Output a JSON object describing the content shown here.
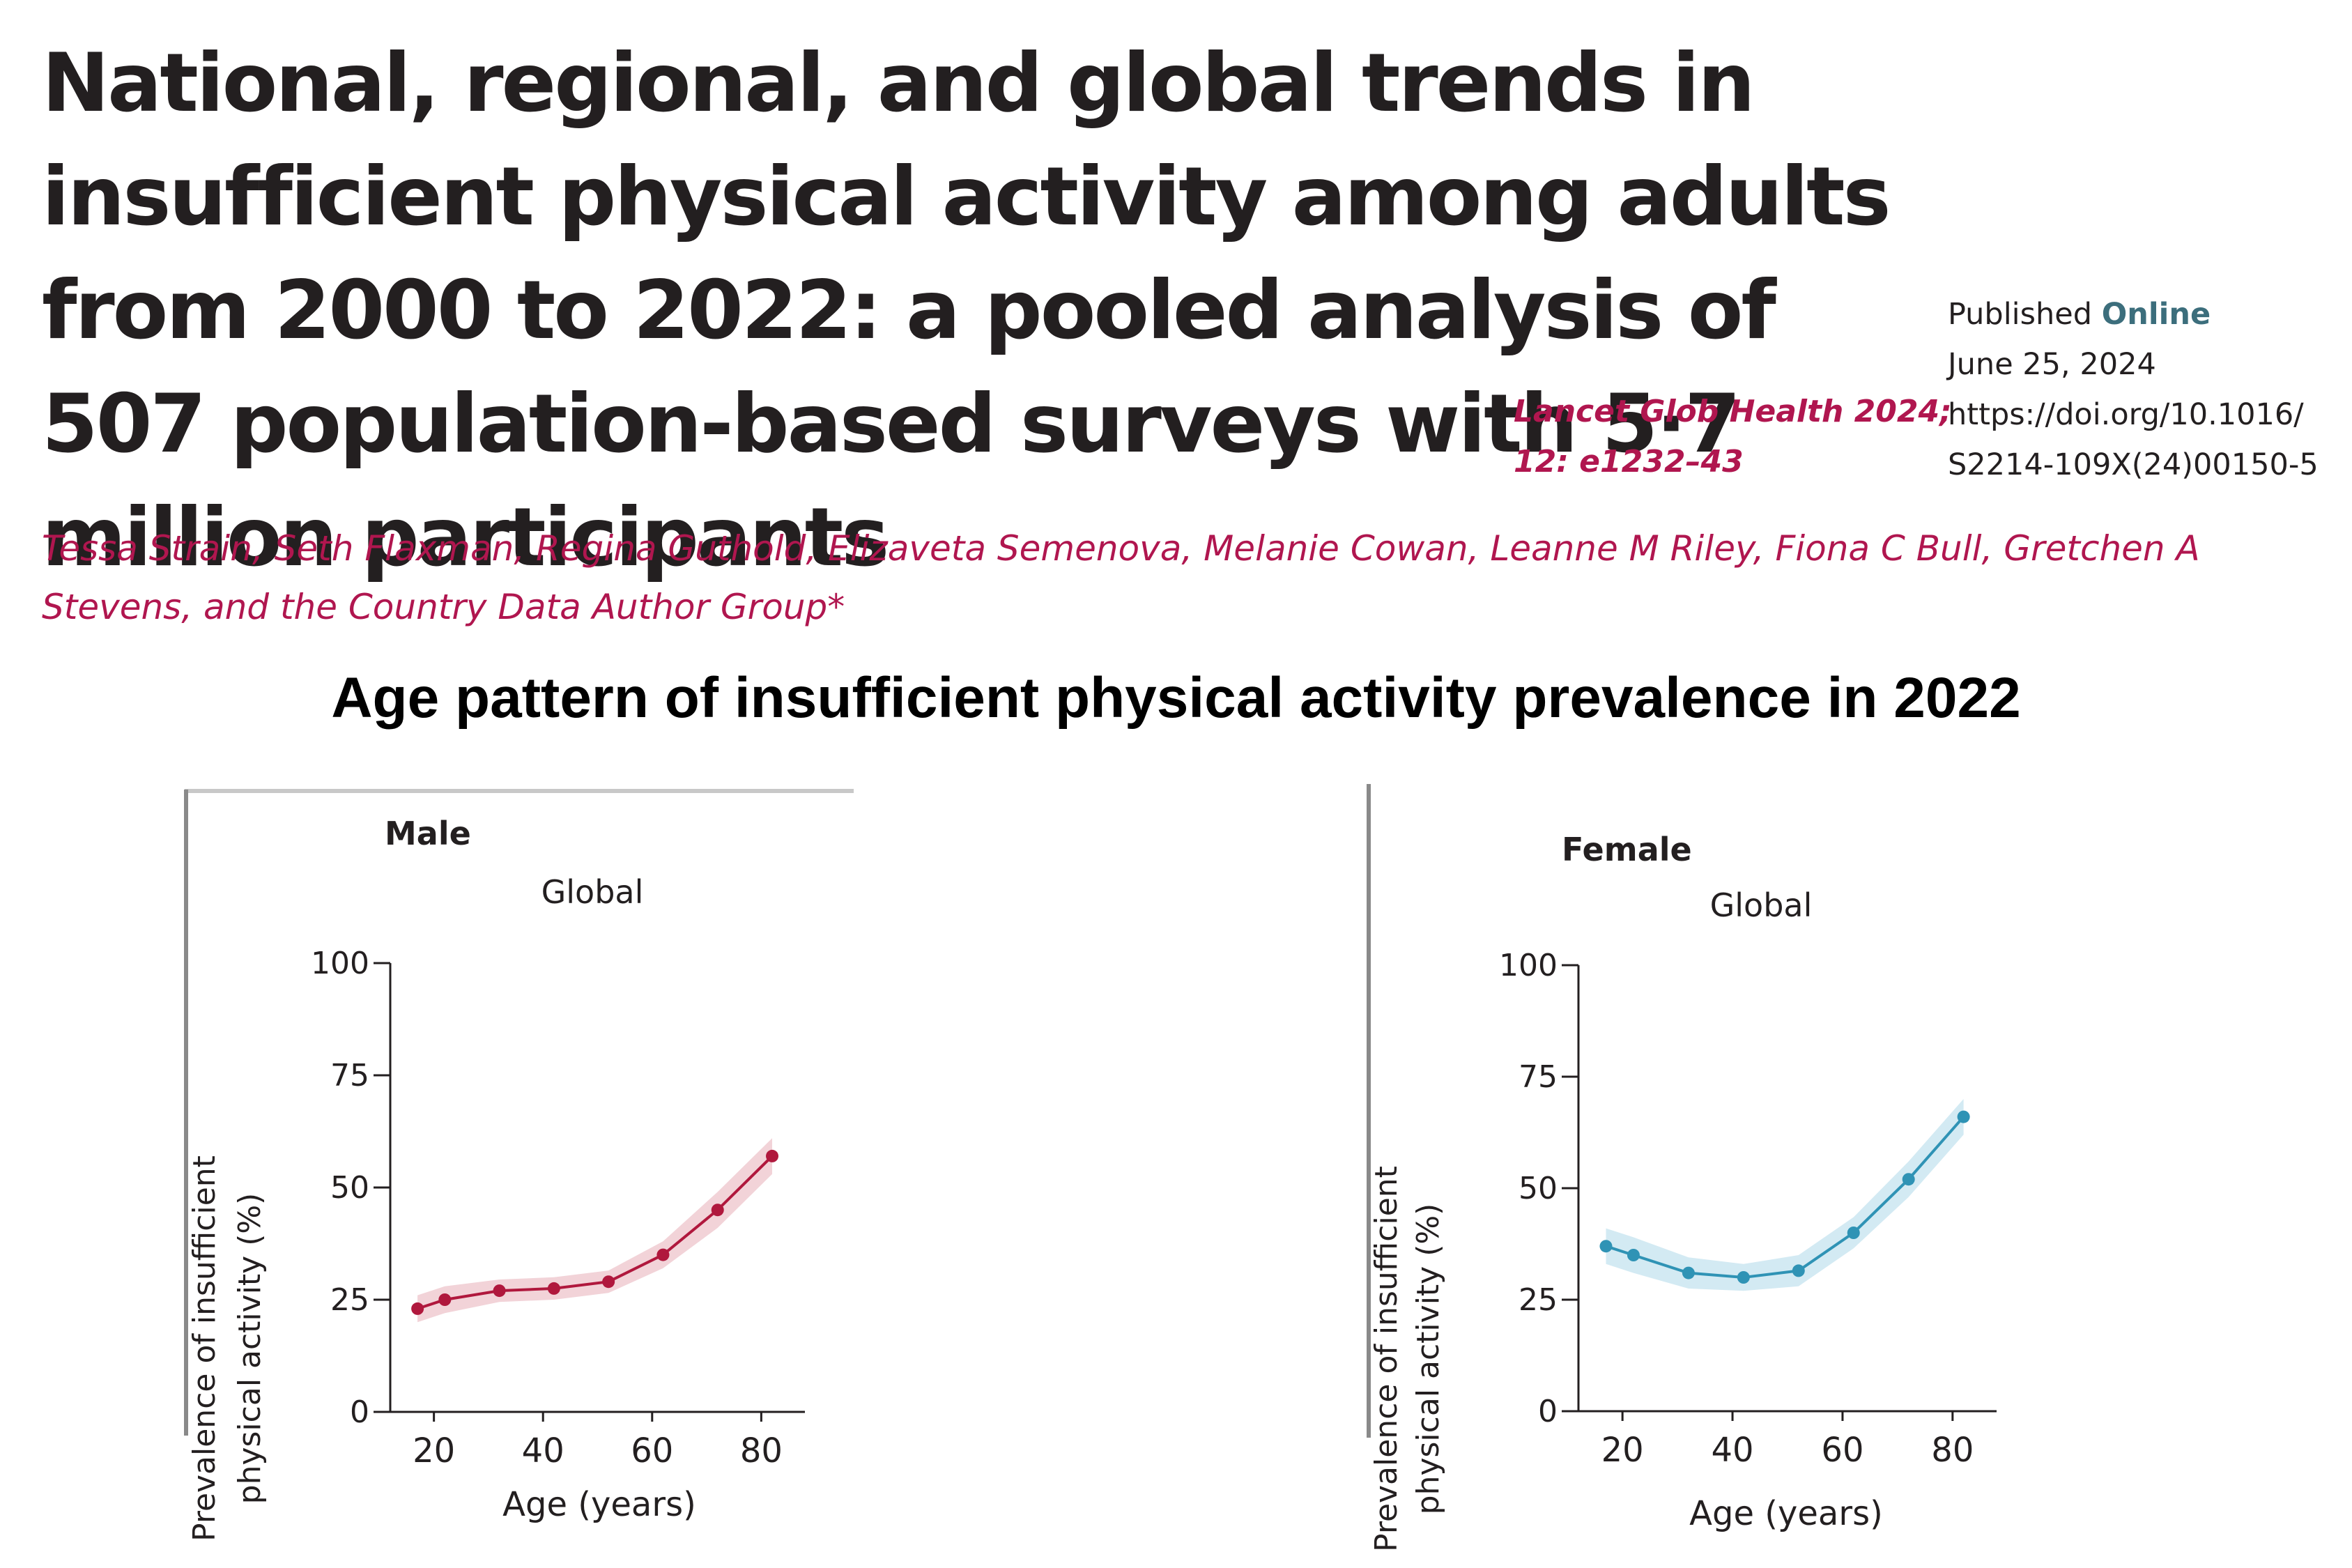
{
  "paper": {
    "title": "National, regional, and global trends in insufficient physical activity among adults from 2000 to 2022: a pooled analysis of 507 population-based surveys with 5·7 million participants",
    "citation_line1": "Lancet Glob Health 2024;",
    "citation_line2": "12: e1232–43",
    "published_label": "Published",
    "published_online": "Online",
    "published_date": "June 25, 2024",
    "doi_line1": "https://doi.org/10.1016/",
    "doi_line2": "S2214-109X(24)00150-5",
    "authors": "Tessa Strain, Seth Flaxman, Regina Guthold, Elizaveta Semenova, Melanie Cowan, Leanne M Riley, Fiona C Bull, Gretchen A Stevens, and the Country Data Author Group*"
  },
  "figure_title": "Age pattern of insufficient physical activity prevalence in 2022",
  "chart_data": [
    {
      "type": "line",
      "panel": "Male",
      "subtitle": "Global",
      "xlabel": "Age (years)",
      "ylabel_line1": "Prevalence of insufficient",
      "ylabel_line2": "physical activity (%)",
      "xlim": [
        12,
        88
      ],
      "ylim": [
        0,
        100
      ],
      "x_ticks": [
        20,
        40,
        60,
        80
      ],
      "y_ticks": [
        0,
        25,
        50,
        75,
        100
      ],
      "color": "#b0183d",
      "band_color": "#f2d3d8",
      "x": [
        17,
        22,
        32,
        42,
        52,
        62,
        72,
        82
      ],
      "y": [
        23,
        25,
        27,
        27.5,
        29,
        35,
        45,
        57
      ],
      "lower": [
        20,
        22,
        24.5,
        25,
        26.5,
        32,
        41,
        53
      ],
      "upper": [
        26,
        28,
        29.5,
        30,
        31.5,
        38,
        49,
        61
      ]
    },
    {
      "type": "line",
      "panel": "Female",
      "subtitle": "Global",
      "xlabel": "Age (years)",
      "ylabel_line1": "Prevalence of insufficient",
      "ylabel_line2": "physical activity (%)",
      "xlim": [
        12,
        88
      ],
      "ylim": [
        0,
        100
      ],
      "x_ticks": [
        20,
        40,
        60,
        80
      ],
      "y_ticks": [
        0,
        25,
        50,
        75,
        100
      ],
      "color": "#2f93b5",
      "band_color": "#d3eaf3",
      "x": [
        17,
        22,
        32,
        42,
        52,
        62,
        72,
        82
      ],
      "y": [
        37,
        35,
        31,
        30,
        31.5,
        40,
        52,
        66
      ],
      "lower": [
        33,
        31,
        27.5,
        27,
        28,
        36.5,
        48,
        62
      ],
      "upper": [
        41,
        39,
        34.5,
        33,
        35,
        43.5,
        56,
        70
      ]
    }
  ]
}
